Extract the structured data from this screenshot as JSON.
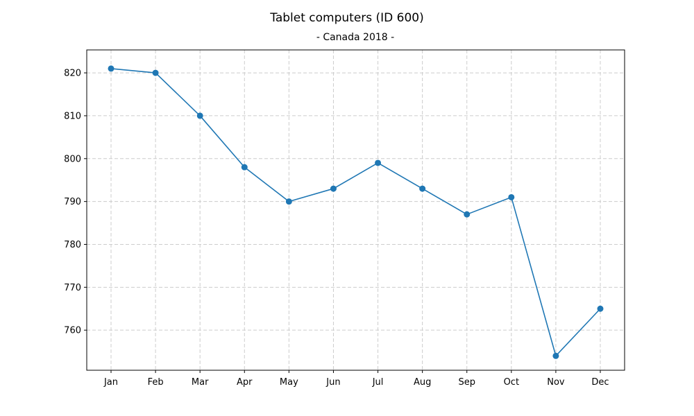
{
  "chart_data": {
    "type": "line",
    "title": "Tablet computers (ID 600)",
    "subtitle": "- Canada 2018 -",
    "xlabel": "",
    "ylabel": "",
    "categories": [
      "Jan",
      "Feb",
      "Mar",
      "Apr",
      "May",
      "Jun",
      "Jul",
      "Aug",
      "Sep",
      "Oct",
      "Nov",
      "Dec"
    ],
    "series": [
      {
        "values": [
          821,
          820,
          810,
          798,
          790,
          793,
          799,
          793,
          787,
          791,
          754,
          765
        ],
        "color": "#1f77b4",
        "marker": "circle"
      }
    ],
    "yticks": [
      760,
      770,
      780,
      790,
      800,
      810,
      820
    ],
    "ylim": [
      750.65,
      825.35
    ],
    "grid": true,
    "legend": "none"
  }
}
